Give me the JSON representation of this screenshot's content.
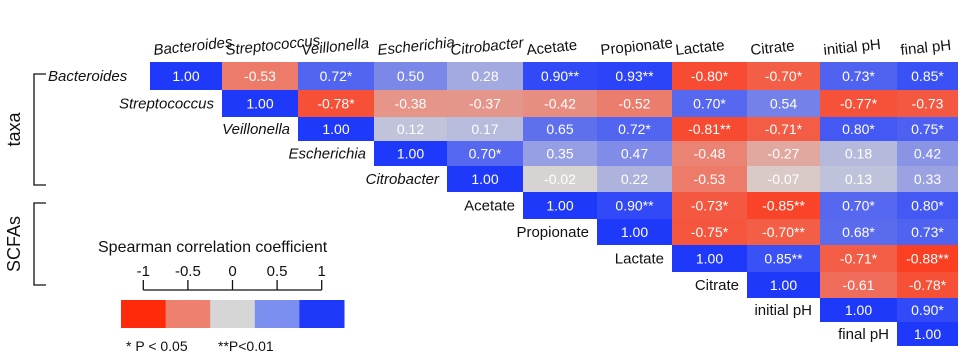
{
  "chart_data": {
    "type": "heatmap",
    "variables": [
      "Bacteroides",
      "Streptococcus",
      "Veillonella",
      "Escherichia",
      "Citrobacter",
      "Acetate",
      "Propionate",
      "Lactate",
      "Citrate",
      "initial pH",
      "final pH"
    ],
    "italic_variables": [
      "Bacteroides",
      "Streptococcus",
      "Veillonella",
      "Escherichia",
      "Citrobacter"
    ],
    "groups": [
      {
        "label": "taxa",
        "variables": [
          "Bacteroides",
          "Streptococcus",
          "Veillonella",
          "Escherichia",
          "Citrobacter"
        ]
      },
      {
        "label": "SCFAs",
        "variables": [
          "Acetate",
          "Propionate",
          "Lactate"
        ]
      }
    ],
    "cells": [
      [
        {
          "v": 1.0,
          "t": "1.00"
        },
        {
          "v": -0.53,
          "t": "-0.53"
        },
        {
          "v": 0.72,
          "t": "0.72*"
        },
        {
          "v": 0.5,
          "t": "0.50"
        },
        {
          "v": 0.28,
          "t": "0.28"
        },
        {
          "v": 0.9,
          "t": "0.90**"
        },
        {
          "v": 0.93,
          "t": "0.93**"
        },
        {
          "v": -0.8,
          "t": "-0.80*"
        },
        {
          "v": -0.7,
          "t": "-0.70*"
        },
        {
          "v": 0.73,
          "t": "0.73*"
        },
        {
          "v": 0.85,
          "t": "0.85*"
        }
      ],
      [
        {
          "v": 1.0,
          "t": "1.00"
        },
        {
          "v": -0.78,
          "t": "-0.78*"
        },
        {
          "v": -0.38,
          "t": "-0.38"
        },
        {
          "v": -0.37,
          "t": "-0.37"
        },
        {
          "v": -0.42,
          "t": "-0.42"
        },
        {
          "v": -0.52,
          "t": "-0.52"
        },
        {
          "v": 0.7,
          "t": "0.70*"
        },
        {
          "v": 0.54,
          "t": "0.54"
        },
        {
          "v": -0.77,
          "t": "-0.77*"
        },
        {
          "v": -0.73,
          "t": "-0.73"
        }
      ],
      [
        {
          "v": 1.0,
          "t": "1.00"
        },
        {
          "v": 0.12,
          "t": "0.12"
        },
        {
          "v": 0.17,
          "t": "0.17"
        },
        {
          "v": 0.65,
          "t": "0.65"
        },
        {
          "v": 0.72,
          "t": "0.72*"
        },
        {
          "v": -0.81,
          "t": "-0.81**"
        },
        {
          "v": -0.71,
          "t": "-0.71*"
        },
        {
          "v": 0.8,
          "t": "0.80*"
        },
        {
          "v": 0.75,
          "t": "0.75*"
        }
      ],
      [
        {
          "v": 1.0,
          "t": "1.00"
        },
        {
          "v": 0.7,
          "t": "0.70*"
        },
        {
          "v": 0.35,
          "t": "0.35"
        },
        {
          "v": 0.47,
          "t": "0.47"
        },
        {
          "v": -0.48,
          "t": "-0.48"
        },
        {
          "v": -0.27,
          "t": "-0.27"
        },
        {
          "v": 0.18,
          "t": "0.18"
        },
        {
          "v": 0.42,
          "t": "0.42"
        }
      ],
      [
        {
          "v": 1.0,
          "t": "1.00"
        },
        {
          "v": -0.02,
          "t": "-0.02"
        },
        {
          "v": 0.22,
          "t": "0.22"
        },
        {
          "v": -0.53,
          "t": "-0.53"
        },
        {
          "v": -0.07,
          "t": "-0.07"
        },
        {
          "v": 0.13,
          "t": "0.13"
        },
        {
          "v": 0.33,
          "t": "0.33"
        }
      ],
      [
        {
          "v": 1.0,
          "t": "1.00"
        },
        {
          "v": 0.9,
          "t": "0.90**"
        },
        {
          "v": -0.73,
          "t": "-0.73*"
        },
        {
          "v": -0.85,
          "t": "-0.85**"
        },
        {
          "v": 0.7,
          "t": "0.70*"
        },
        {
          "v": 0.8,
          "t": "0.80*"
        }
      ],
      [
        {
          "v": 1.0,
          "t": "1.00"
        },
        {
          "v": -0.75,
          "t": "-0.75*"
        },
        {
          "v": -0.7,
          "t": "-0.70**"
        },
        {
          "v": 0.68,
          "t": "0.68*"
        },
        {
          "v": 0.73,
          "t": "0.73*"
        }
      ],
      [
        {
          "v": 1.0,
          "t": "1.00"
        },
        {
          "v": 0.85,
          "t": "0.85**"
        },
        {
          "v": -0.71,
          "t": "-0.71*"
        },
        {
          "v": -0.88,
          "t": "-0.88**"
        }
      ],
      [
        {
          "v": 1.0,
          "t": "1.00"
        },
        {
          "v": -0.61,
          "t": "-0.61"
        },
        {
          "v": -0.78,
          "t": "-0.78*"
        }
      ],
      [
        {
          "v": 1.0,
          "t": "1.00"
        },
        {
          "v": 0.9,
          "t": "0.90*"
        }
      ],
      [
        {
          "v": 1.0,
          "t": "1.00"
        }
      ]
    ],
    "legend": {
      "title": "Spearman correlation coefficient",
      "ticks": [
        "-1",
        "-0.5",
        "0",
        "0.5",
        "1"
      ],
      "tick_values": [
        -1,
        -0.5,
        0,
        0.5,
        1
      ],
      "colors": [
        "#ff2a0a",
        "#ee8070",
        "#d6d6d6",
        "#7a8ff0",
        "#1f39fa"
      ],
      "note_1": "* P < 0.05",
      "note_2": "**P<0.01"
    },
    "colors": {
      "negative": "#ff2a0a",
      "neutral": "#d6d6d6",
      "positive": "#1f39fa"
    }
  }
}
